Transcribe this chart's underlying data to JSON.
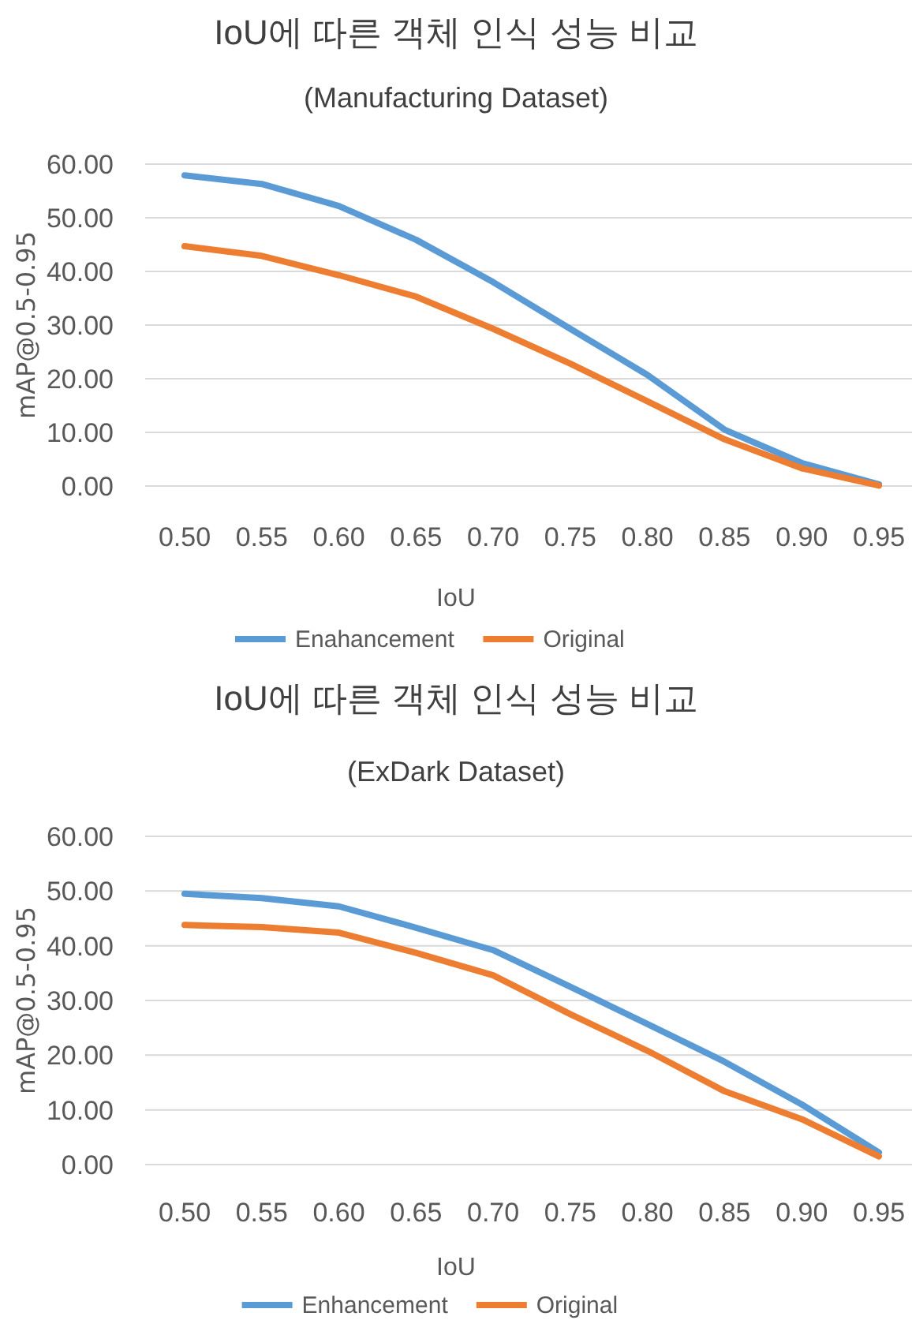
{
  "chart_data": [
    {
      "type": "line",
      "title": "IoU에 따른 객체 인식 성능 비교",
      "subtitle": "(Manufacturing Dataset)",
      "xlabel": "IoU",
      "ylabel": "mAP@0.5-0.95",
      "categories": [
        "0.50",
        "0.55",
        "0.60",
        "0.65",
        "0.70",
        "0.75",
        "0.80",
        "0.85",
        "0.90",
        "0.95"
      ],
      "series": [
        {
          "name": "Enahancement",
          "color": "#5b9bd5",
          "values": [
            57.9,
            56.3,
            52.2,
            45.9,
            38.0,
            29.3,
            20.7,
            10.5,
            4.3,
            0.3
          ]
        },
        {
          "name": "Original",
          "color": "#ed7d31",
          "values": [
            44.7,
            42.9,
            39.3,
            35.3,
            29.3,
            22.8,
            15.8,
            8.7,
            3.3,
            0.1
          ]
        }
      ],
      "ylim": [
        0,
        60
      ],
      "yticks": [
        {
          "value": 0,
          "label": "0.00"
        },
        {
          "value": 10,
          "label": "10.00"
        },
        {
          "value": 20,
          "label": "20.00"
        },
        {
          "value": 30,
          "label": "30.00"
        },
        {
          "value": 40,
          "label": "40.00"
        },
        {
          "value": 50,
          "label": "50.00"
        },
        {
          "value": 60,
          "label": "60.00"
        }
      ],
      "grid": "y",
      "legend": "bottom",
      "marker": "none",
      "line_style": "solid"
    },
    {
      "type": "line",
      "title": "IoU에 따른 객체 인식 성능 비교",
      "subtitle": "(ExDark Dataset)",
      "xlabel": "IoU",
      "ylabel": "mAP@0.5-0.95",
      "categories": [
        "0.50",
        "0.55",
        "0.60",
        "0.65",
        "0.70",
        "0.75",
        "0.80",
        "0.85",
        "0.90",
        "0.95"
      ],
      "series": [
        {
          "name": "Enhancement",
          "color": "#5b9bd5",
          "values": [
            49.5,
            48.7,
            47.2,
            43.3,
            39.2,
            32.5,
            25.7,
            18.8,
            11.0,
            2.2
          ]
        },
        {
          "name": "Original",
          "color": "#ed7d31",
          "values": [
            43.8,
            43.4,
            42.4,
            38.7,
            34.6,
            27.5,
            20.8,
            13.4,
            8.3,
            1.5
          ]
        }
      ],
      "ylim": [
        0,
        60
      ],
      "yticks": [
        {
          "value": 0,
          "label": "0.00"
        },
        {
          "value": 10,
          "label": "10.00"
        },
        {
          "value": 20,
          "label": "20.00"
        },
        {
          "value": 30,
          "label": "30.00"
        },
        {
          "value": 40,
          "label": "40.00"
        },
        {
          "value": 50,
          "label": "50.00"
        },
        {
          "value": 60,
          "label": "60.00"
        }
      ],
      "grid": "y",
      "legend": "bottom",
      "marker": "none",
      "line_style": "solid"
    }
  ]
}
